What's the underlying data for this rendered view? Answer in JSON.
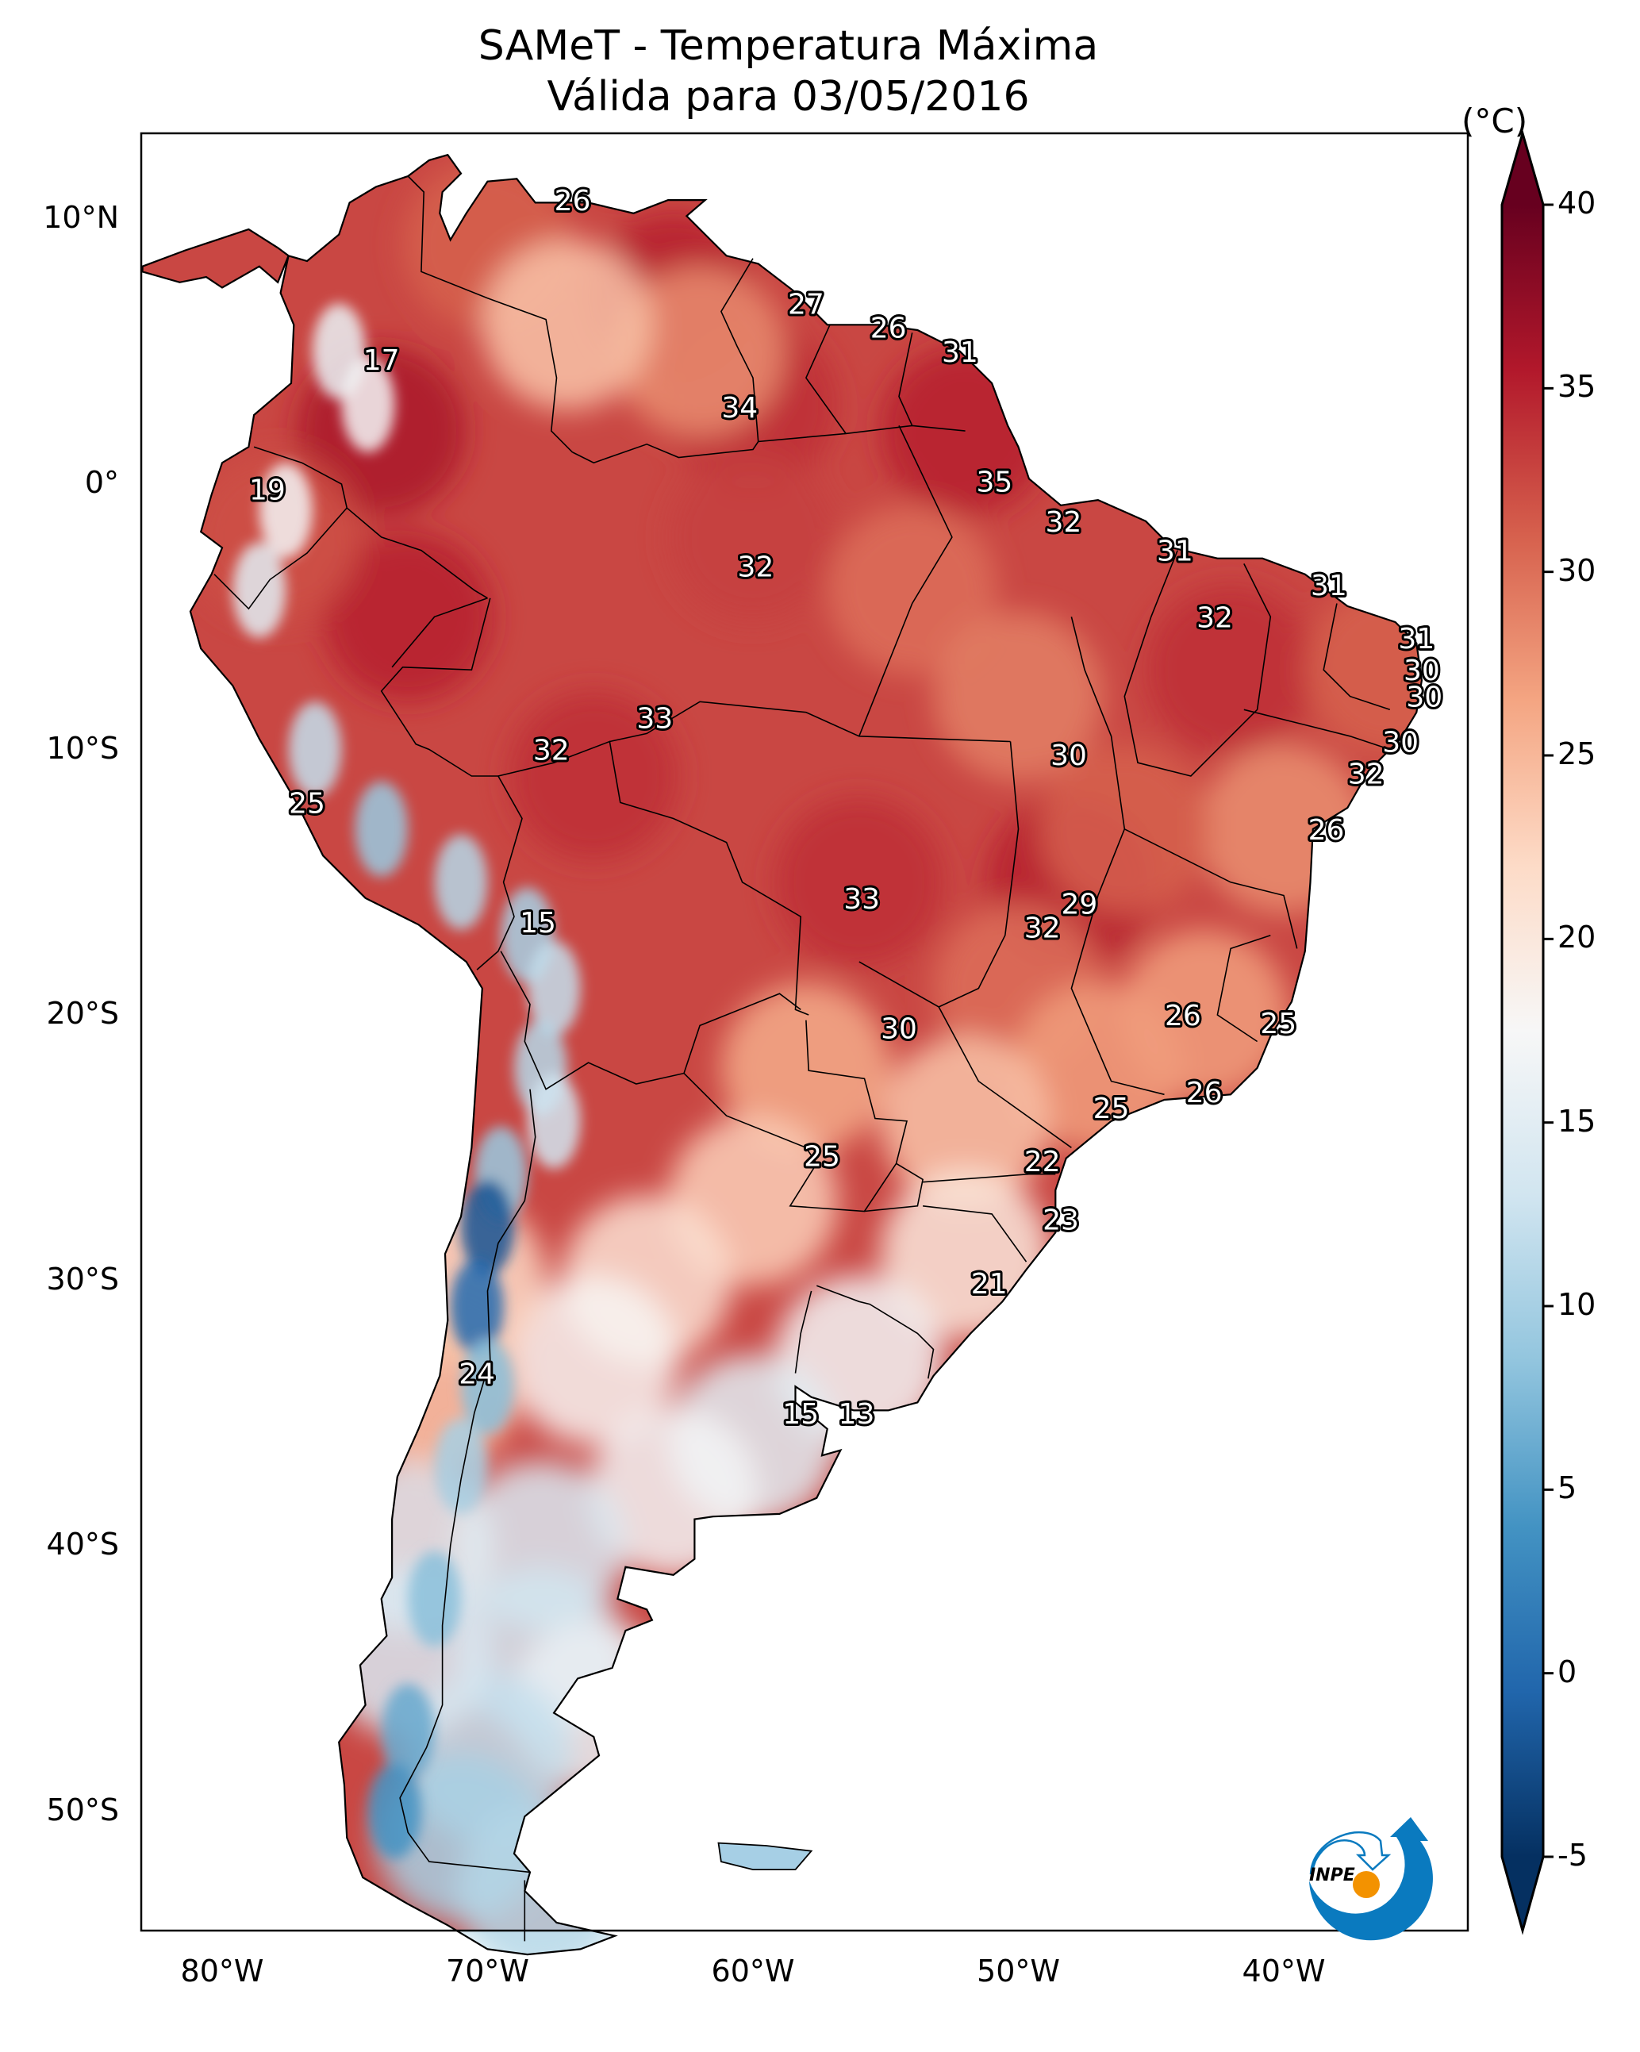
{
  "chart_data": {
    "type": "heatmap",
    "subtype": "geographic-temperature-map",
    "title": "SAMeT - Temperatura Máxima",
    "subtitle": "Válida para 03/05/2016",
    "region": "South America",
    "xlabel": "",
    "ylabel": "",
    "lon_range": [
      -83,
      -33
    ],
    "lat_range": [
      -56.5,
      12.5
    ],
    "lon_ticks": [
      {
        "value": -80,
        "label": "80°W"
      },
      {
        "value": -70,
        "label": "70°W"
      },
      {
        "value": -60,
        "label": "60°W"
      },
      {
        "value": -50,
        "label": "50°W"
      },
      {
        "value": -40,
        "label": "40°W"
      }
    ],
    "lat_ticks": [
      {
        "value": 10,
        "label": "10°N"
      },
      {
        "value": 0,
        "label": "0°"
      },
      {
        "value": -10,
        "label": "10°S"
      },
      {
        "value": -20,
        "label": "20°S"
      },
      {
        "value": -30,
        "label": "30°S"
      },
      {
        "value": -40,
        "label": "40°S"
      },
      {
        "value": -50,
        "label": "50°S"
      }
    ],
    "colorbar": {
      "unit_label": "(°C)",
      "colormap": "RdBu_r",
      "range": [
        -5,
        40
      ],
      "extend": "both",
      "ticks": [
        -5,
        0,
        5,
        10,
        15,
        20,
        25,
        30,
        35,
        40
      ],
      "colors": [
        "#053061",
        "#2166ac",
        "#4393c3",
        "#92c5de",
        "#d1e5f0",
        "#f7f7f7",
        "#fddbc7",
        "#f4a582",
        "#d6604d",
        "#b2182b",
        "#67001f"
      ]
    },
    "grid": false,
    "station_labels": [
      {
        "lon": -66.8,
        "lat": 10.7,
        "value": 26
      },
      {
        "lon": -74.0,
        "lat": 4.7,
        "value": 17
      },
      {
        "lon": -78.3,
        "lat": -0.2,
        "value": 19
      },
      {
        "lon": -58.0,
        "lat": 6.8,
        "value": 27
      },
      {
        "lon": -54.9,
        "lat": 5.9,
        "value": 26
      },
      {
        "lon": -52.2,
        "lat": 5.0,
        "value": 31
      },
      {
        "lon": -60.5,
        "lat": 2.9,
        "value": 34
      },
      {
        "lon": -50.9,
        "lat": 0.1,
        "value": 35
      },
      {
        "lon": -48.3,
        "lat": -1.4,
        "value": 32
      },
      {
        "lon": -59.9,
        "lat": -3.1,
        "value": 32
      },
      {
        "lon": -44.1,
        "lat": -2.5,
        "value": 31
      },
      {
        "lon": -38.3,
        "lat": -3.8,
        "value": 31
      },
      {
        "lon": -42.6,
        "lat": -5.0,
        "value": 32
      },
      {
        "lon": -35.0,
        "lat": -5.8,
        "value": 31
      },
      {
        "lon": -34.8,
        "lat": -7.0,
        "value": 30
      },
      {
        "lon": -34.7,
        "lat": -8.0,
        "value": 30
      },
      {
        "lon": -35.6,
        "lat": -9.7,
        "value": 30
      },
      {
        "lon": -63.7,
        "lat": -8.8,
        "value": 33
      },
      {
        "lon": -67.6,
        "lat": -10.0,
        "value": 32
      },
      {
        "lon": -48.1,
        "lat": -10.2,
        "value": 30
      },
      {
        "lon": -36.9,
        "lat": -10.9,
        "value": 32
      },
      {
        "lon": -76.8,
        "lat": -12.0,
        "value": 25
      },
      {
        "lon": -38.4,
        "lat": -13.0,
        "value": 26
      },
      {
        "lon": -68.1,
        "lat": -16.5,
        "value": 15
      },
      {
        "lon": -55.9,
        "lat": -15.6,
        "value": 33
      },
      {
        "lon": -47.7,
        "lat": -15.8,
        "value": 29
      },
      {
        "lon": -49.1,
        "lat": -16.7,
        "value": 32
      },
      {
        "lon": -54.5,
        "lat": -20.5,
        "value": 30
      },
      {
        "lon": -43.8,
        "lat": -20.0,
        "value": 26
      },
      {
        "lon": -40.2,
        "lat": -20.3,
        "value": 25
      },
      {
        "lon": -43.0,
        "lat": -22.9,
        "value": 26
      },
      {
        "lon": -46.5,
        "lat": -23.5,
        "value": 25
      },
      {
        "lon": -57.4,
        "lat": -25.3,
        "value": 25
      },
      {
        "lon": -49.1,
        "lat": -25.5,
        "value": 22
      },
      {
        "lon": -48.4,
        "lat": -27.7,
        "value": 23
      },
      {
        "lon": -51.1,
        "lat": -30.1,
        "value": 21
      },
      {
        "lon": -70.4,
        "lat": -33.5,
        "value": 24
      },
      {
        "lon": -58.2,
        "lat": -35.0,
        "value": 15
      },
      {
        "lon": -56.1,
        "lat": -35.0,
        "value": 13
      }
    ],
    "temperature_field_description": {
      "amazon_and_north": "31-36",
      "northeast_brazil_coast": "30-32",
      "southeast_brazil": "22-26",
      "southern_brazil_uruguay": "13-21",
      "andes_highlands": "-5-15",
      "patagonia": "5-15",
      "central_argentina": "17-22"
    }
  },
  "logo": {
    "text": "INPE",
    "primary_color": "#0a7abf",
    "accent_color": "#f39200"
  }
}
